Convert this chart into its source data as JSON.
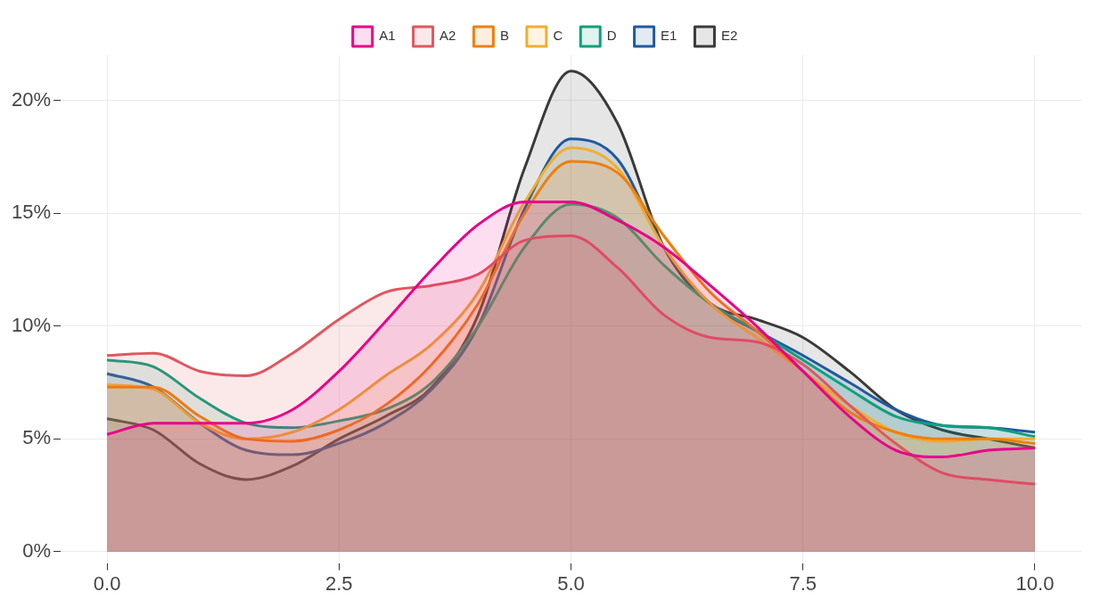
{
  "chart_data": {
    "type": "area",
    "x": [
      0,
      0.5,
      1,
      1.5,
      2,
      2.5,
      3,
      3.5,
      4,
      4.5,
      5,
      5.5,
      6,
      6.5,
      7,
      7.5,
      8,
      8.5,
      9,
      9.5,
      10
    ],
    "series": [
      {
        "name": "A1",
        "color": "#e7008a",
        "values": [
          5.2,
          5.7,
          5.7,
          5.7,
          6.3,
          8.0,
          10.2,
          12.5,
          14.5,
          15.5,
          15.5,
          14.7,
          13.5,
          11.8,
          10.0,
          8.0,
          6.0,
          4.5,
          4.2,
          4.5,
          4.6
        ]
      },
      {
        "name": "A2",
        "color": "#e0575f",
        "values": [
          8.7,
          8.8,
          8.0,
          7.8,
          8.8,
          10.3,
          11.5,
          11.8,
          12.3,
          13.8,
          14.0,
          12.6,
          10.5,
          9.5,
          9.3,
          8.3,
          6.5,
          4.8,
          3.5,
          3.2,
          3.0
        ]
      },
      {
        "name": "B",
        "color": "#f07f0c",
        "values": [
          7.3,
          7.3,
          6.0,
          5.0,
          4.9,
          5.4,
          6.5,
          8.3,
          11.0,
          15.0,
          17.3,
          16.8,
          14.0,
          11.5,
          9.8,
          8.0,
          6.2,
          5.3,
          5.0,
          5.0,
          4.8
        ]
      },
      {
        "name": "C",
        "color": "#f2ae2d",
        "values": [
          7.4,
          7.2,
          5.7,
          5.0,
          5.3,
          6.3,
          7.8,
          9.2,
          11.5,
          15.5,
          17.9,
          17.0,
          13.5,
          11.0,
          9.5,
          8.0,
          6.5,
          5.3,
          4.9,
          5.0,
          5.0
        ]
      },
      {
        "name": "D",
        "color": "#10a07e",
        "values": [
          8.5,
          8.2,
          6.8,
          5.7,
          5.5,
          5.8,
          6.3,
          7.5,
          10.0,
          13.5,
          15.4,
          14.8,
          12.7,
          11.0,
          9.8,
          8.5,
          7.2,
          6.0,
          5.6,
          5.5,
          5.1
        ]
      },
      {
        "name": "E1",
        "color": "#1f5aa0",
        "values": [
          7.9,
          7.3,
          5.7,
          4.5,
          4.3,
          4.8,
          5.7,
          7.2,
          10.0,
          15.2,
          18.3,
          17.4,
          13.5,
          11.0,
          9.8,
          8.7,
          7.5,
          6.3,
          5.6,
          5.5,
          5.3
        ]
      },
      {
        "name": "E2",
        "color": "#3a3a3a",
        "values": [
          5.9,
          5.4,
          3.9,
          3.2,
          3.8,
          5.0,
          6.0,
          7.3,
          10.5,
          17.0,
          21.3,
          19.0,
          13.5,
          11.0,
          10.3,
          9.5,
          8.0,
          6.3,
          5.4,
          5.0,
          4.6
        ]
      }
    ],
    "xlim": [
      -0.5,
      10.5
    ],
    "xticks": [
      {
        "value": 0,
        "label": "0.0"
      },
      {
        "value": 2.5,
        "label": "2.5"
      },
      {
        "value": 5,
        "label": "5.0"
      },
      {
        "value": 7.5,
        "label": "7.5"
      },
      {
        "value": 10,
        "label": "10.0"
      }
    ],
    "ylim": [
      -0.5,
      22
    ],
    "yticks": [
      {
        "value": 0,
        "label": "0%"
      },
      {
        "value": 5,
        "label": "5%"
      },
      {
        "value": 10,
        "label": "10%"
      },
      {
        "value": 15,
        "label": "15%"
      },
      {
        "value": 20,
        "label": "20%"
      }
    ],
    "grid": true,
    "legend": "top"
  }
}
